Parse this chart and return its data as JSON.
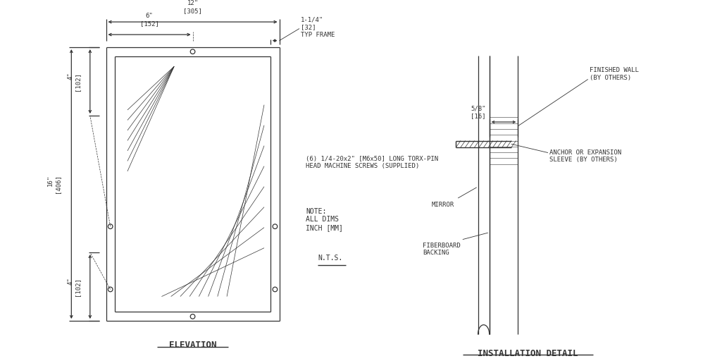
{
  "bg_color": "#ffffff",
  "line_color": "#333333",
  "text_color": "#333333",
  "title": "ELEVATION",
  "title2": "INSTALLATION DETAIL",
  "note_text": "NOTE:\nALL DIMS\nINCH [MM]",
  "nts_text": "N.T.S.",
  "screw_text": "(6) 1/4-20x2\" [M6x50] LONG TORX-PIN\nHEAD MACHINE SCREWS (SUPPLIED)",
  "dim_12": "12\"\n[305]",
  "dim_6": "6\"\n[152]",
  "dim_125": "1-1/4\"\n[32]\nTYP FRAME",
  "dim_4top": "4\"\n[102]",
  "dim_16": "16\"\n[406]",
  "dim_4bot": "4\"\n[102]",
  "dim_58": "5/8\"\n[16]",
  "label_finished_wall": "FINISHED WALL\n(BY OTHERS)",
  "label_anchor": "ANCHOR OR EXPANSION\nSLEEVE (BY OTHERS)",
  "label_mirror": "MIRROR",
  "label_fiberboard": "FIBERBOARD\nBACKING"
}
